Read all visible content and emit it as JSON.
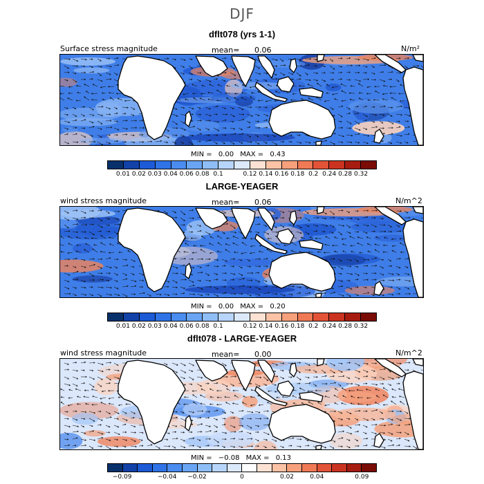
{
  "figure_title": "DJF",
  "panels": [
    {
      "title": "dflt078 (yrs 1-1)",
      "field_label": "Surface stress magnitude",
      "mean_label": "mean=",
      "mean_value": "0.06",
      "units": "N/m²",
      "min_label": "MIN =",
      "min_value": "0.00",
      "max_label": "MAX =",
      "max_value": "0.43",
      "colorbar_colors": [
        "#08306b",
        "#1241a8",
        "#1c5ad6",
        "#2f73e6",
        "#4a8cf0",
        "#6aa5f4",
        "#8fbef7",
        "#b7d5fa",
        "#dce9fb",
        "#fde2d3",
        "#fbc2a6",
        "#f7a07c",
        "#f07a56",
        "#e25338",
        "#cb3321",
        "#a61c10",
        "#7a0c05"
      ],
      "colorbar_ticks": [
        "0.01",
        "0.02",
        "0.03",
        "0.04",
        "0.06",
        "0.08",
        "0.1",
        "0.12",
        "0.14",
        "0.16",
        "0.18",
        "0.2",
        "0.24",
        "0.28",
        "0.32"
      ]
    },
    {
      "title": "LARGE-YEAGER",
      "field_label": "wind stress magnitude",
      "mean_label": "mean=",
      "mean_value": "0.06",
      "units": "N/m^2",
      "min_label": "MIN =",
      "min_value": "0.00",
      "max_label": "MAX =",
      "max_value": "0.20",
      "colorbar_colors": [
        "#08306b",
        "#1241a8",
        "#1c5ad6",
        "#2f73e6",
        "#4a8cf0",
        "#6aa5f4",
        "#8fbef7",
        "#b7d5fa",
        "#dce9fb",
        "#fde2d3",
        "#fbc2a6",
        "#f7a07c",
        "#f07a56",
        "#e25338",
        "#cb3321",
        "#a61c10",
        "#7a0c05"
      ],
      "colorbar_ticks": [
        "0.01",
        "0.02",
        "0.03",
        "0.04",
        "0.06",
        "0.08",
        "0.1",
        "0.12",
        "0.14",
        "0.16",
        "0.18",
        "0.2",
        "0.24",
        "0.28",
        "0.32"
      ]
    },
    {
      "title": "dflt078 - LARGE-YEAGER",
      "field_label": "wind stress magnitude",
      "mean_label": "mean=",
      "mean_value": "0.00",
      "units": "N/m^2",
      "min_label": "MIN =",
      "min_value": "−0.08",
      "max_label": "MAX =",
      "max_value": "0.13",
      "colorbar_colors": [
        "#08306b",
        "#1241a8",
        "#1c5ad6",
        "#2f73e6",
        "#4a8cf0",
        "#6aa5f4",
        "#8fbef7",
        "#b7d5fa",
        "#dce9fb",
        "#ffffff",
        "#fde2d3",
        "#fbc2a6",
        "#f7a07c",
        "#f07a56",
        "#e25338",
        "#cb3321",
        "#a61c10",
        "#7a0c05"
      ],
      "colorbar_ticks": [
        "−0.09",
        "−0.04",
        "−0.02",
        "0",
        "0.02",
        "0.04",
        "0.09"
      ]
    }
  ]
}
